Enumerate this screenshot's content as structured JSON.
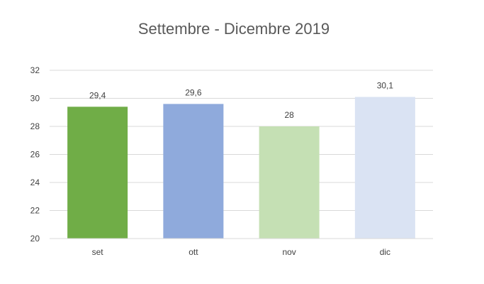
{
  "chart_data": {
    "type": "bar",
    "title": "Settembre - Dicembre 2019",
    "categories": [
      "set",
      "ott",
      "nov",
      "dic"
    ],
    "values": [
      29.4,
      29.6,
      28,
      30.1
    ],
    "data_labels": [
      "29,4",
      "29,6",
      "28",
      "30,1"
    ],
    "bar_colors": [
      "#70ad47",
      "#8faadc",
      "#c5e0b4",
      "#dae3f3"
    ],
    "ylim": [
      20,
      32
    ],
    "yticks": [
      20,
      22,
      24,
      26,
      28,
      30,
      32
    ],
    "ytick_labels": [
      "20",
      "22",
      "24",
      "26",
      "28",
      "30",
      "32"
    ],
    "grid": true,
    "legend": "none"
  }
}
